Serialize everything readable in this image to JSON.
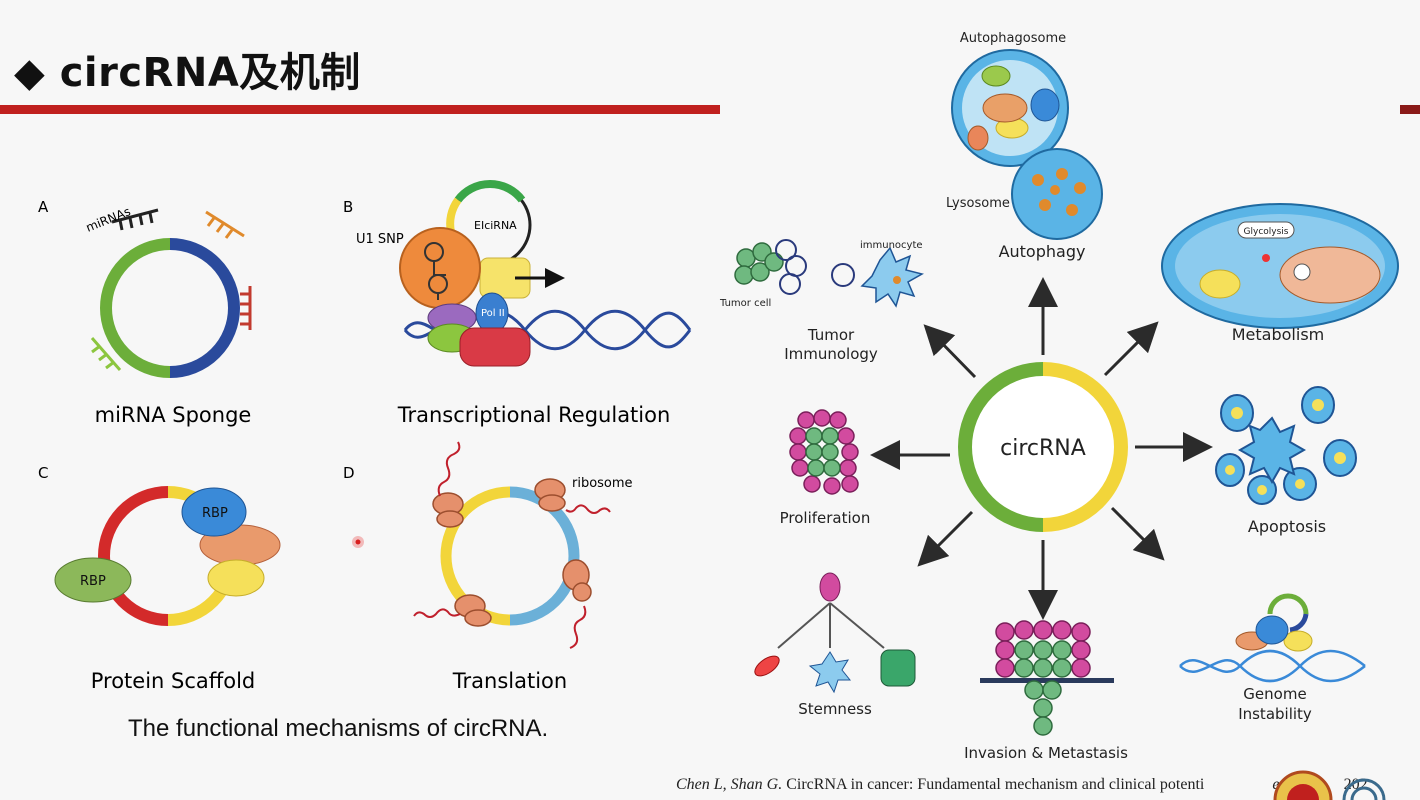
{
  "slide": {
    "title": "◆ circRNA及机制",
    "figure_caption": "The functional mechanisms of circRNA.",
    "citation_authors": "Chen L, Shan G.",
    "citation_text": " CircRNA in cancer: Fundamental mechanism and clinical potenti",
    "citation_tail": "ence",
    "citation_year": "202"
  },
  "left_panels": {
    "a": {
      "letter": "A",
      "caption": "miRNA Sponge",
      "mirna_label": "miRNAs"
    },
    "b": {
      "letter": "B",
      "caption": "Transcriptional Regulation",
      "snp_label": "U1 SNP",
      "elcirna_label": "EIciRNA",
      "pol_label": "Pol II"
    },
    "c": {
      "letter": "C",
      "caption": "Protein Scaffold",
      "rbp1": "RBP",
      "rbp2": "RBP"
    },
    "d": {
      "letter": "D",
      "caption": "Translation",
      "ribosome_label": "ribosome"
    }
  },
  "right_diagram": {
    "center": "circRNA",
    "autophagy": {
      "label": "Autophagy",
      "autophagosome": "Autophagosome",
      "lysosome": "Lysosome"
    },
    "metabolism": {
      "label": "Metabolism",
      "glycolysis": "Glycolysis"
    },
    "apoptosis": "Apoptosis",
    "genome": "Genome\nInstability",
    "invasion": "Invasion & Metastasis",
    "stemness": "Stemness",
    "proliferation": "Proliferation",
    "tumor_immunology": {
      "label": "Tumor\nImmunology",
      "tumor_cell": "Tumor cell",
      "immunocyte": "immunocyte"
    }
  },
  "colors": {
    "accent_red": "#c0201e",
    "green": "#6cae3a",
    "yellow": "#f2d53a",
    "blue": "#2a4a9c",
    "arrow": "#2b2b2b"
  }
}
